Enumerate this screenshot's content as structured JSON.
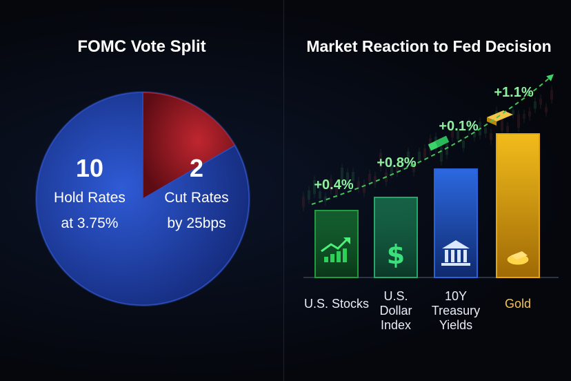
{
  "chart_data": [
    {
      "type": "pie",
      "title": "FOMC Vote Split",
      "slices": [
        {
          "value": 10,
          "label": "Hold Rates",
          "sublabel": "at 3.75%",
          "color": "#2a4ec0"
        },
        {
          "value": 2,
          "label": "Cut Rates",
          "sublabel": "by 25bps",
          "color": "#b0212a"
        }
      ]
    },
    {
      "type": "bar",
      "title": "Market Reaction to Fed Decision",
      "categories": [
        "U.S. Stocks",
        "U.S. Dollar Index",
        "10Y Treasury Yields",
        "Gold"
      ],
      "category_lines": [
        [
          "U.S. Stocks"
        ],
        [
          "U.S.",
          "Dollar",
          "Index"
        ],
        [
          "10Y",
          "Treasury",
          "Yields"
        ],
        [
          "Gold"
        ]
      ],
      "values": [
        0.4,
        0.8,
        0.1,
        1.1
      ],
      "value_labels": [
        "+0.4%",
        "+0.8%",
        "+0.1%",
        "+1.1%"
      ],
      "colors": [
        "#1f9d3f",
        "#23a86a",
        "#2a63d8",
        "#e0a712"
      ],
      "icons": [
        "chart-up-icon",
        "dollar-icon",
        "bank-icon",
        "gold-bars-icon"
      ],
      "grid": false,
      "legend": "none"
    }
  ]
}
